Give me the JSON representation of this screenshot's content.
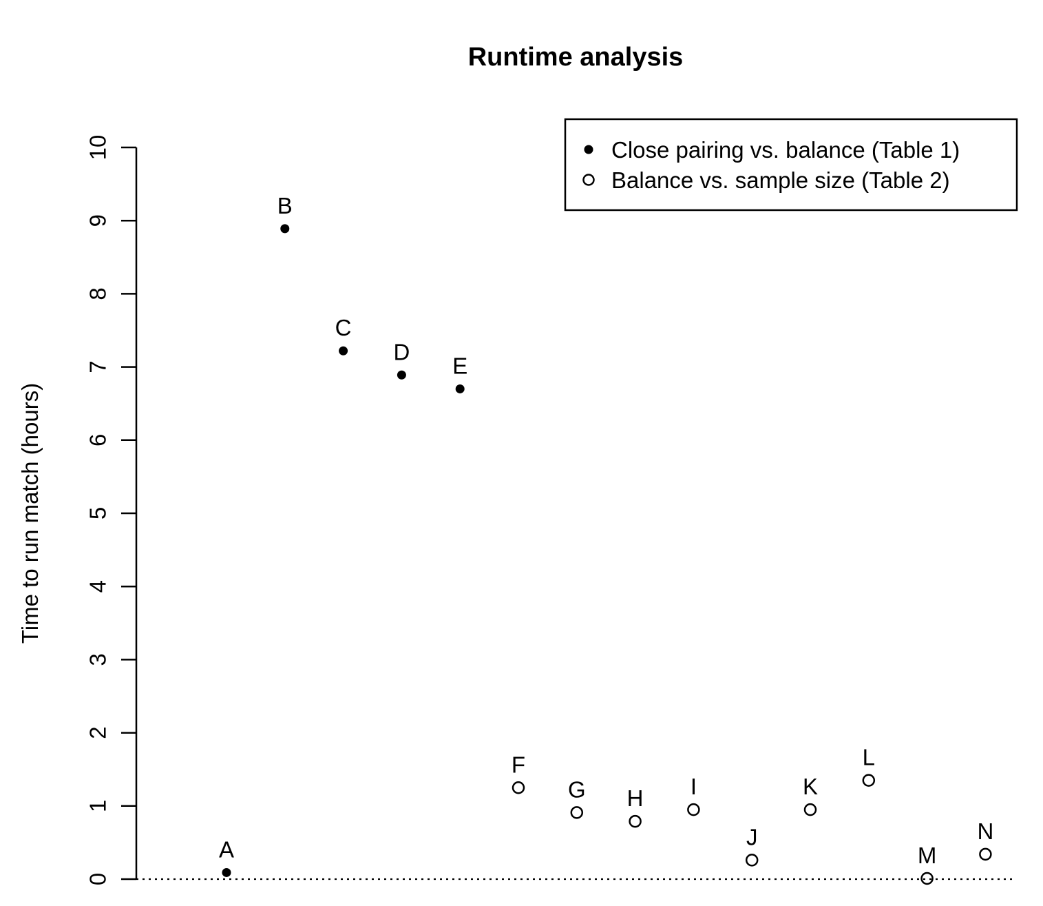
{
  "chart_data": {
    "type": "scatter",
    "title": "Runtime analysis",
    "xlabel": "",
    "ylabel": "Time to run match (hours)",
    "ylim": [
      0,
      10
    ],
    "yticks": [
      "0",
      "1",
      "2",
      "3",
      "4",
      "5",
      "6",
      "7",
      "8",
      "9",
      "10"
    ],
    "grid": false,
    "legend_position": "top-right",
    "reference_line": {
      "y": 0,
      "style": "dotted"
    },
    "series": [
      {
        "name": "Close pairing vs. balance (Table 1)",
        "marker": "filled-circle",
        "points": [
          {
            "label": "A",
            "x": 1,
            "y": 0.09
          },
          {
            "label": "B",
            "x": 2,
            "y": 8.89
          },
          {
            "label": "C",
            "x": 3,
            "y": 7.22
          },
          {
            "label": "D",
            "x": 4,
            "y": 6.89
          },
          {
            "label": "E",
            "x": 5,
            "y": 6.7
          }
        ]
      },
      {
        "name": "Balance vs. sample size (Table 2)",
        "marker": "open-circle",
        "points": [
          {
            "label": "F",
            "x": 6,
            "y": 1.25
          },
          {
            "label": "G",
            "x": 7,
            "y": 0.91
          },
          {
            "label": "H",
            "x": 8,
            "y": 0.79
          },
          {
            "label": "I",
            "x": 9,
            "y": 0.95
          },
          {
            "label": "J",
            "x": 10,
            "y": 0.26
          },
          {
            "label": "K",
            "x": 11,
            "y": 0.95
          },
          {
            "label": "L",
            "x": 12,
            "y": 1.35
          },
          {
            "label": "M",
            "x": 13,
            "y": 0.01
          },
          {
            "label": "N",
            "x": 14,
            "y": 0.34
          }
        ]
      }
    ]
  }
}
